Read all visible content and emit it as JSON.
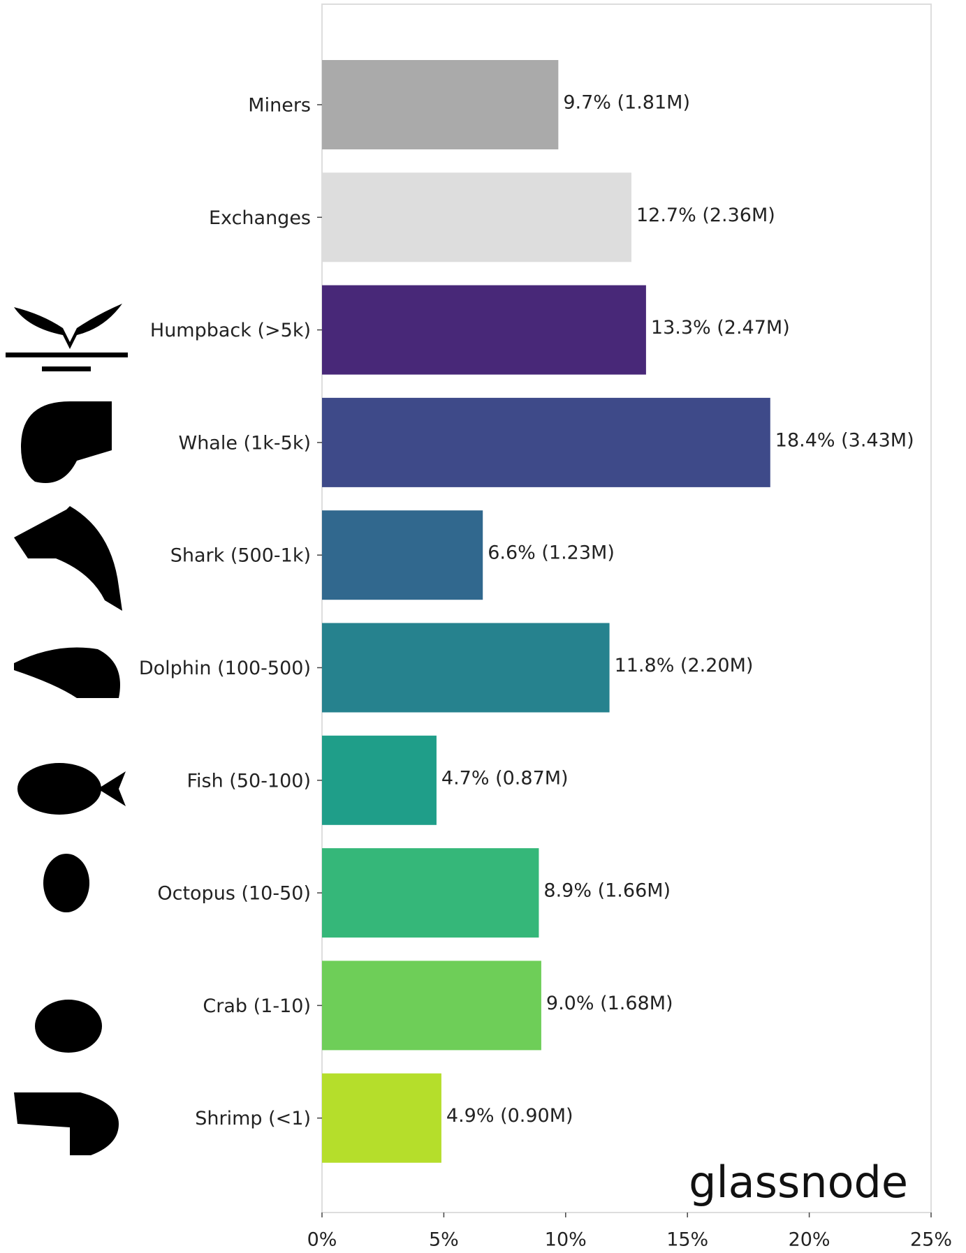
{
  "chart_data": {
    "type": "bar",
    "orientation": "horizontal",
    "categories": [
      "Miners",
      "Exchanges",
      "Humpback (>5k)",
      "Whale (1k-5k)",
      "Shark (500-1k)",
      "Dolphin (100-500)",
      "Fish (50-100)",
      "Octopus (10-50)",
      "Crab (1-10)",
      "Shrimp (<1)"
    ],
    "values": [
      9.7,
      12.7,
      13.3,
      18.4,
      6.6,
      11.8,
      4.7,
      8.9,
      9.0,
      4.9
    ],
    "value_labels": [
      "9.7% (1.81M)",
      "12.7% (2.36M)",
      "13.3% (2.47M)",
      "18.4% (3.43M)",
      "6.6% (1.23M)",
      "11.8% (2.20M)",
      "4.7% (0.87M)",
      "8.9% (1.66M)",
      "9.0% (1.68M)",
      "4.9% (0.90M)"
    ],
    "colors": [
      "#aaaaaa",
      "#dddddd",
      "#482878",
      "#3e4a89",
      "#31688e",
      "#26828e",
      "#1f9e89",
      "#35b779",
      "#6ece58",
      "#b5de2b"
    ],
    "xlim": [
      0,
      25
    ],
    "xticks": [
      {
        "value": 0,
        "label": "0%"
      },
      {
        "value": 5,
        "label": "5%"
      },
      {
        "value": 10,
        "label": "10%"
      },
      {
        "value": 15,
        "label": "15%"
      },
      {
        "value": 20,
        "label": "20%"
      },
      {
        "value": 25,
        "label": "25%"
      }
    ],
    "watermark": "glassnode"
  }
}
